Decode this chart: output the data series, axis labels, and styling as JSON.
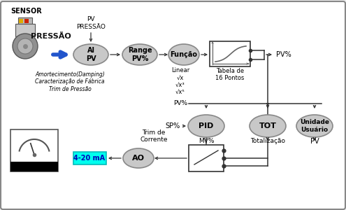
{
  "bg_color": "#eeeeee",
  "border_color": "#888888",
  "ellipse_color": "#c8c8c8",
  "ellipse_edge": "#888888",
  "box_edge": "#333333",
  "arrow_color": "#333333",
  "blue_arrow_color": "#2255cc",
  "cyan_box_color": "#00ffee",
  "sensor_label": "SENSOR",
  "pressao_label": "PRESSÃO",
  "pv_pressao_label": "PV\nPRESSÃO",
  "ai_label": "AI\nPV",
  "range_label": "Range\nPV%",
  "funcao_label": "Função",
  "tabela_label": "Tabela de\n16 Pontos",
  "pv_pct_label": "PV%",
  "linear_label": "Linear\n√x\n√x³\n√x⁵",
  "pid_label": "PID",
  "sp_label": "SP%",
  "mv_label": "MV%",
  "tot_label": "TOT",
  "totalizacao_label": "Totalização",
  "unidade_label": "Unidade\nUsuário",
  "pv_label": "PV",
  "ao_label": "AO",
  "trim_corrente_label": "Trim de\nCorrente",
  "ma_label": "4-20 mA",
  "amortecimento_label": "Amortecimento(Damping)\nCaracterização de Fábrica\nTrim de Pressão",
  "pv_pct2_label": "PV%"
}
